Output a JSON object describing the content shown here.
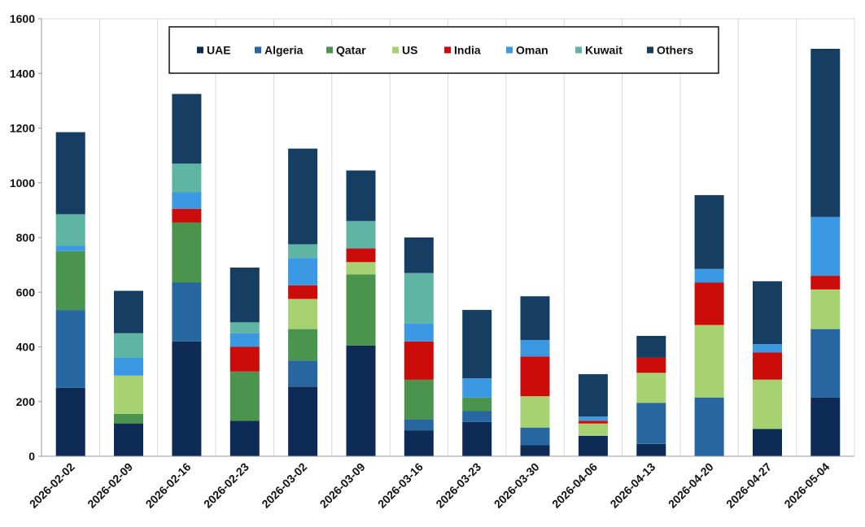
{
  "chart_data": {
    "type": "bar",
    "stacked": true,
    "title": "",
    "xlabel": "",
    "ylabel": "",
    "ylim": [
      0,
      1600
    ],
    "yticks": [
      0,
      200,
      400,
      600,
      800,
      1000,
      1200,
      1400,
      1600
    ],
    "grid": {
      "vertical": true,
      "horizontal": false
    },
    "legend_position": "top-center",
    "categories": [
      "2026-02-02",
      "2026-02-09",
      "2026-02-16",
      "2026-02-23",
      "2026-03-02",
      "2026-03-09",
      "2026-03-16",
      "2026-03-23",
      "2026-03-30",
      "2026-04-06",
      "2026-04-13",
      "2026-04-20",
      "2026-04-27",
      "2026-05-04"
    ],
    "series": [
      {
        "name": "UAE",
        "color": "#0d2b55",
        "values": [
          250,
          120,
          420,
          130,
          255,
          405,
          95,
          125,
          40,
          75,
          45,
          0,
          100,
          215
        ]
      },
      {
        "name": "Algeria",
        "color": "#2766a0",
        "values": [
          285,
          0,
          215,
          0,
          95,
          0,
          40,
          40,
          65,
          0,
          150,
          215,
          0,
          250
        ]
      },
      {
        "name": "Qatar",
        "color": "#4b944e",
        "values": [
          215,
          35,
          220,
          180,
          115,
          260,
          145,
          50,
          0,
          0,
          0,
          0,
          0,
          0
        ]
      },
      {
        "name": "US",
        "color": "#a6d272",
        "values": [
          0,
          140,
          0,
          0,
          110,
          45,
          0,
          0,
          115,
          45,
          110,
          265,
          180,
          145
        ]
      },
      {
        "name": "India",
        "color": "#cc0b0b",
        "values": [
          0,
          0,
          50,
          90,
          50,
          50,
          140,
          0,
          145,
          10,
          55,
          155,
          100,
          50
        ]
      },
      {
        "name": "Oman",
        "color": "#3b98e3",
        "values": [
          20,
          65,
          60,
          50,
          100,
          0,
          65,
          70,
          60,
          15,
          0,
          50,
          30,
          215
        ]
      },
      {
        "name": "Kuwait",
        "color": "#5fb5a3",
        "values": [
          115,
          90,
          105,
          40,
          50,
          100,
          185,
          0,
          0,
          0,
          0,
          0,
          0,
          0
        ]
      },
      {
        "name": "Others",
        "color": "#163d62",
        "values": [
          300,
          155,
          255,
          200,
          350,
          185,
          130,
          250,
          160,
          155,
          80,
          270,
          230,
          615
        ]
      }
    ]
  }
}
